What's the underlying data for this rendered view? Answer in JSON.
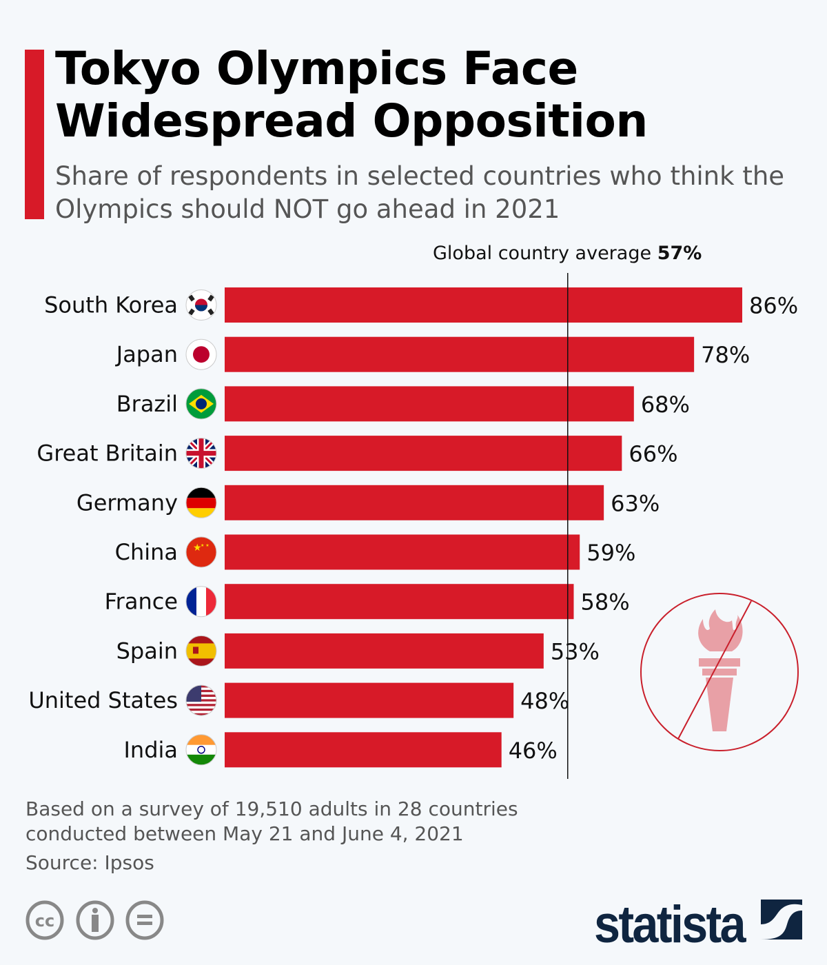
{
  "header": {
    "title_line1": "Tokyo Olympics Face",
    "title_line2": "Widespread Opposition",
    "subtitle": "Share of respondents in selected countries who think the Olympics should NOT go ahead in 2021"
  },
  "chart_data": {
    "type": "bar",
    "orientation": "horizontal",
    "categories": [
      "South Korea",
      "Japan",
      "Brazil",
      "Great Britain",
      "Germany",
      "China",
      "France",
      "Spain",
      "United States",
      "India"
    ],
    "values": [
      86,
      78,
      68,
      66,
      63,
      59,
      58,
      53,
      48,
      46
    ],
    "value_labels": [
      "86%",
      "78%",
      "68%",
      "66%",
      "63%",
      "59%",
      "58%",
      "53%",
      "48%",
      "46%"
    ],
    "flag_icons": [
      "south-korea-flag-icon",
      "japan-flag-icon",
      "brazil-flag-icon",
      "great-britain-flag-icon",
      "germany-flag-icon",
      "china-flag-icon",
      "france-flag-icon",
      "spain-flag-icon",
      "united-states-flag-icon",
      "india-flag-icon"
    ],
    "xlim": [
      0,
      86
    ],
    "reference_line": {
      "label": "Global country average",
      "value_label": "57%",
      "value": 57
    },
    "bar_color": "#d71a28",
    "grid": false
  },
  "footer": {
    "note_line1": "Based on a survey of 19,510 adults in 28 countries",
    "note_line2": "conducted between May 21 and June 4, 2021",
    "source": "Source: Ipsos",
    "brand": "statista"
  },
  "colors": {
    "accent": "#d71a28",
    "brand": "#0f2540",
    "torch": "#e8a0a6"
  }
}
